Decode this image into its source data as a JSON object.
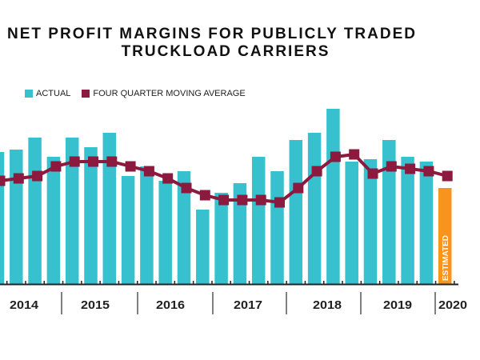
{
  "chart_data": {
    "type": "bar",
    "title_line1": "NET PROFIT MARGINS FOR PUBLICLY TRADED",
    "title_line2": "TRUCKLOAD CARRIERS",
    "legend": [
      "ACTUAL",
      "FOUR QUARTER MOVING AVERAGE"
    ],
    "legend_placement": "top-left",
    "xlabel": "",
    "ylabel": "",
    "years": [
      "2014",
      "2015",
      "2016",
      "2017",
      "2018",
      "2019",
      "2020"
    ],
    "estimated_label": "ESTIMATED",
    "ylim": [
      0,
      8
    ],
    "grid": false,
    "series": [
      {
        "name": "ACTUAL",
        "type": "bar",
        "values": [
          5.5,
          5.6,
          6.1,
          5.3,
          6.1,
          5.7,
          6.3,
          4.5,
          4.9,
          4.3,
          4.7,
          3.1,
          3.8,
          4.2,
          5.3,
          4.7,
          6.0,
          6.3,
          7.3,
          5.1,
          5.2,
          6.0,
          5.3,
          5.1,
          4.0
        ],
        "estimated_index": 24
      },
      {
        "name": "FOUR QUARTER MOVING AVERAGE",
        "type": "line",
        "values": [
          4.3,
          4.4,
          4.5,
          4.9,
          5.1,
          5.1,
          5.1,
          4.9,
          4.7,
          4.4,
          4.0,
          3.7,
          3.5,
          3.5,
          3.5,
          3.4,
          4.0,
          4.7,
          5.3,
          5.4,
          4.6,
          4.9,
          4.8,
          4.7,
          4.5
        ]
      }
    ],
    "colors": {
      "actual": "#37c0cd",
      "estimated": "#f7941d",
      "moving_average": "#8b1a3e",
      "axis": "#222222"
    }
  }
}
